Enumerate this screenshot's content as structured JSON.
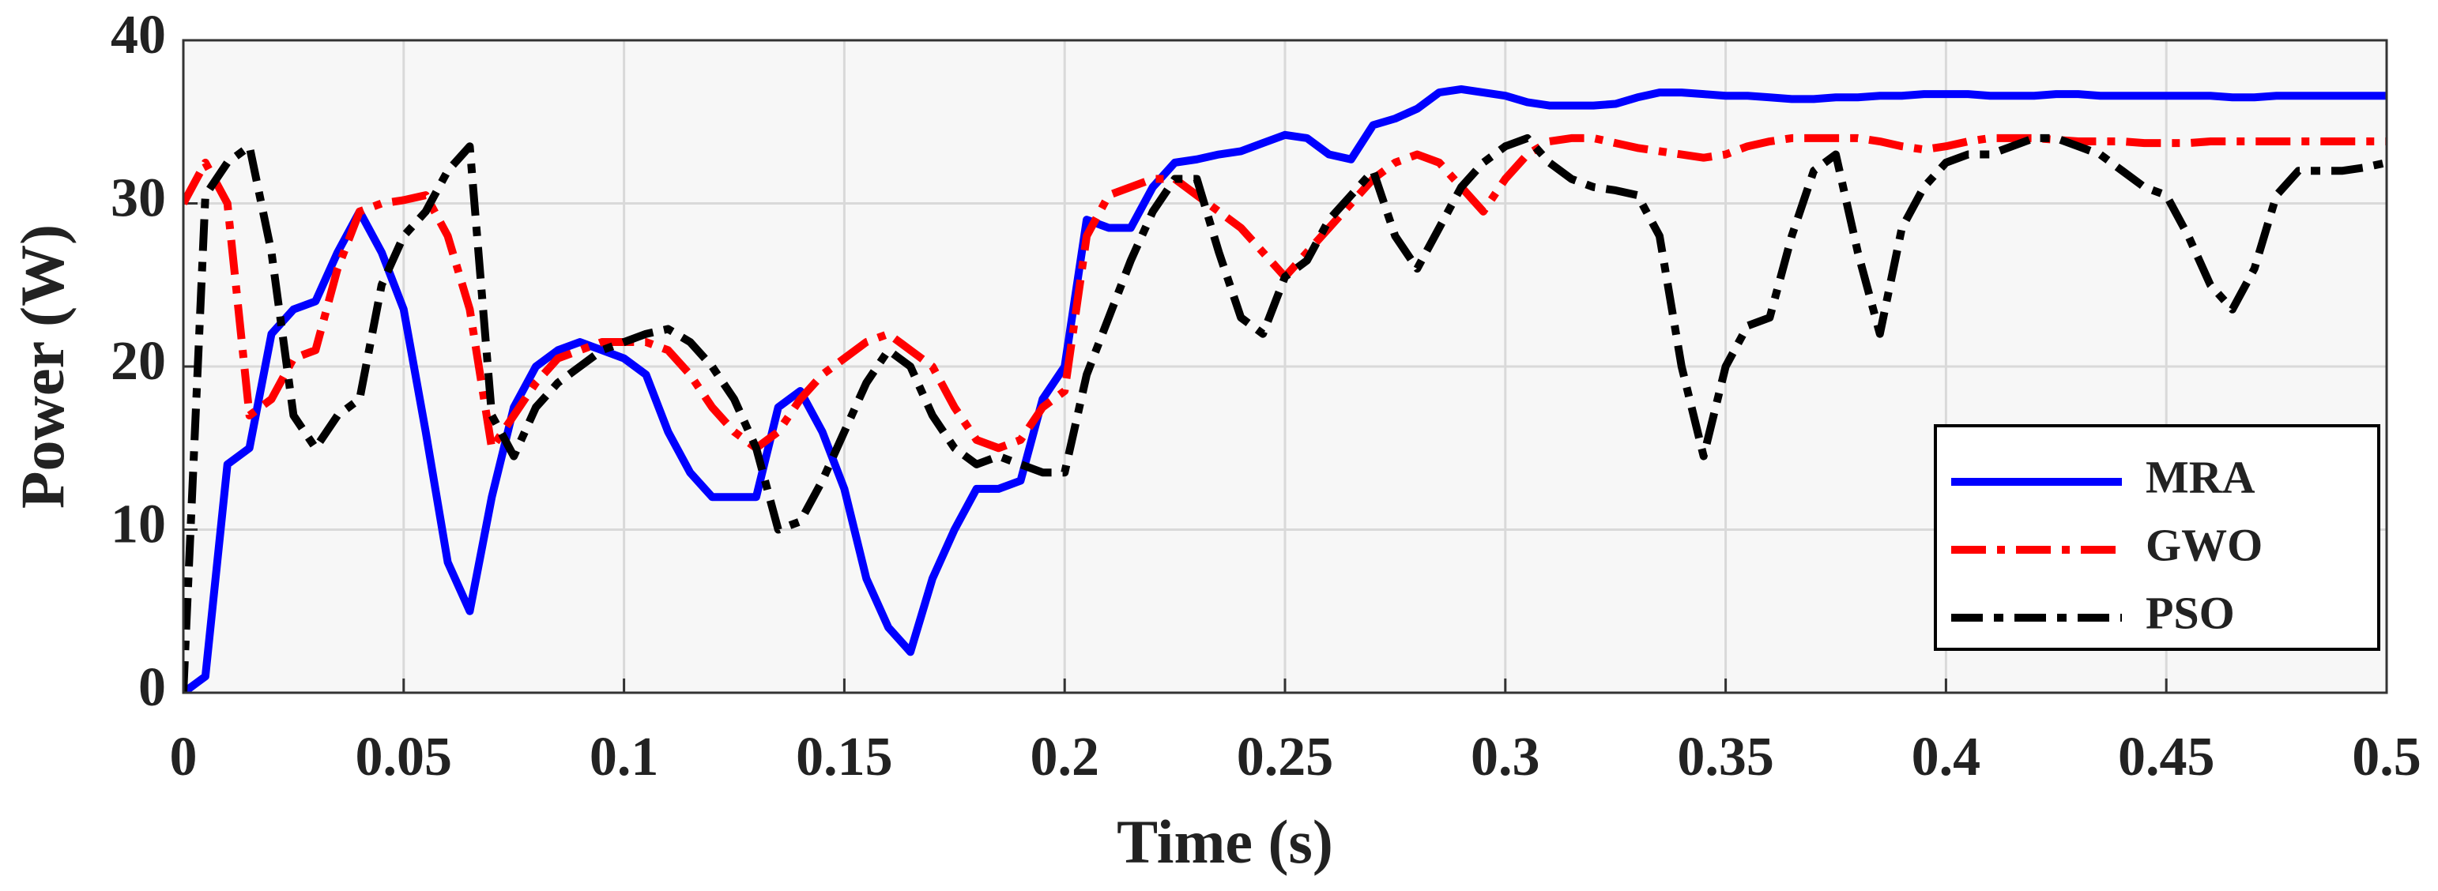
{
  "chart_data": {
    "type": "line",
    "xlabel": "Time (s)",
    "ylabel": "Power (W)",
    "xlim": [
      0,
      0.5
    ],
    "ylim": [
      0,
      40
    ],
    "xticks": [
      0,
      0.05,
      0.1,
      0.15,
      0.2,
      0.25,
      0.3,
      0.35,
      0.4,
      0.45,
      0.5
    ],
    "yticks": [
      0,
      10,
      20,
      30,
      40
    ],
    "grid": true,
    "legend": "lower right",
    "x": [
      0,
      0.005,
      0.01,
      0.015,
      0.02,
      0.025,
      0.03,
      0.035,
      0.04,
      0.045,
      0.05,
      0.055,
      0.06,
      0.065,
      0.07,
      0.075,
      0.08,
      0.085,
      0.09,
      0.095,
      0.1,
      0.105,
      0.11,
      0.115,
      0.12,
      0.125,
      0.13,
      0.135,
      0.14,
      0.145,
      0.15,
      0.155,
      0.16,
      0.165,
      0.17,
      0.175,
      0.18,
      0.185,
      0.19,
      0.195,
      0.2,
      0.205,
      0.21,
      0.215,
      0.22,
      0.225,
      0.23,
      0.235,
      0.24,
      0.245,
      0.25,
      0.255,
      0.26,
      0.265,
      0.27,
      0.275,
      0.28,
      0.285,
      0.29,
      0.295,
      0.3,
      0.305,
      0.31,
      0.315,
      0.32,
      0.325,
      0.33,
      0.335,
      0.34,
      0.345,
      0.35,
      0.355,
      0.36,
      0.365,
      0.37,
      0.375,
      0.38,
      0.385,
      0.39,
      0.395,
      0.4,
      0.405,
      0.41,
      0.415,
      0.42,
      0.425,
      0.43,
      0.435,
      0.44,
      0.445,
      0.45,
      0.455,
      0.46,
      0.465,
      0.47,
      0.475,
      0.48,
      0.485,
      0.49,
      0.495,
      0.5
    ],
    "series": [
      {
        "name": "MRA",
        "color": "#0000ff",
        "dash": "solid",
        "values": [
          0,
          1,
          14,
          15,
          22,
          23.5,
          24,
          27,
          29.5,
          27,
          23.5,
          16,
          8,
          5,
          12,
          17.5,
          20,
          21,
          21.5,
          21,
          20.5,
          19.5,
          16,
          13.5,
          12,
          12,
          12,
          17.5,
          18.5,
          16,
          12.5,
          7,
          4,
          2.5,
          7,
          10,
          12.5,
          12.5,
          13,
          18,
          20,
          29,
          28.5,
          28.5,
          31,
          32.5,
          32.7,
          33,
          33.2,
          33.7,
          34.2,
          34,
          33,
          32.7,
          34.8,
          35.2,
          35.8,
          36.8,
          37,
          36.8,
          36.6,
          36.2,
          36,
          36,
          36,
          36.1,
          36.5,
          36.8,
          36.8,
          36.7,
          36.6,
          36.6,
          36.5,
          36.4,
          36.4,
          36.5,
          36.5,
          36.6,
          36.6,
          36.7,
          36.7,
          36.7,
          36.6,
          36.6,
          36.6,
          36.7,
          36.7,
          36.6,
          36.6,
          36.6,
          36.6,
          36.6,
          36.6,
          36.5,
          36.5,
          36.6,
          36.6,
          36.6,
          36.6,
          36.6,
          36.6
        ]
      },
      {
        "name": "GWO",
        "color": "#ff0000",
        "dash": "dashdot",
        "values": [
          30,
          32.5,
          30,
          17,
          18,
          20.5,
          21,
          26,
          29.5,
          30,
          30.2,
          30.5,
          28,
          23.5,
          15,
          17,
          19,
          20.5,
          21,
          21.5,
          21.5,
          21.5,
          21,
          19.5,
          17.5,
          16,
          15,
          16,
          18,
          19.5,
          20.5,
          21.5,
          22,
          21,
          20,
          17.5,
          15.5,
          15,
          15.5,
          17.5,
          18.5,
          28,
          30.5,
          31,
          31.5,
          31.5,
          30.5,
          29.5,
          28.5,
          27,
          25.5,
          27,
          28.5,
          30,
          31.5,
          32.5,
          33,
          32.5,
          31,
          29.5,
          31.5,
          33,
          33.8,
          34,
          34,
          33.7,
          33.4,
          33.2,
          33,
          32.8,
          33,
          33.5,
          33.8,
          34,
          34,
          34,
          34,
          33.8,
          33.5,
          33.3,
          33.5,
          33.8,
          34,
          34,
          34,
          33.9,
          33.8,
          33.8,
          33.8,
          33.7,
          33.7,
          33.7,
          33.8,
          33.8,
          33.8,
          33.8,
          33.8,
          33.8,
          33.8,
          33.8,
          33.8
        ]
      },
      {
        "name": "PSO",
        "color": "#000000",
        "dash": "dashed",
        "values": [
          0,
          30.5,
          32.5,
          33.5,
          27,
          17,
          15,
          17,
          18,
          25,
          28,
          29.5,
          32,
          33.5,
          17,
          14.5,
          17.5,
          19,
          20,
          21,
          21.5,
          22,
          22.3,
          21.5,
          20,
          18,
          15,
          10,
          10.5,
          13,
          16,
          19,
          21,
          20,
          17,
          15,
          14,
          14.5,
          14,
          13.5,
          13.5,
          19.5,
          23,
          26.5,
          29.5,
          31.5,
          31.5,
          27,
          23,
          22,
          25.5,
          26.5,
          29,
          30.5,
          32,
          28,
          26,
          28.5,
          31,
          32.5,
          33.5,
          34,
          32.5,
          31.5,
          31,
          30.8,
          30.5,
          28,
          20,
          14.5,
          20,
          22.5,
          23,
          28,
          32,
          33,
          27,
          22,
          28.5,
          31,
          32.5,
          33,
          33,
          33.5,
          34,
          34,
          33.5,
          33,
          32,
          31,
          30.5,
          28,
          25,
          23.5,
          26,
          30.5,
          32,
          32,
          32,
          32.2,
          32.5
        ]
      }
    ]
  }
}
